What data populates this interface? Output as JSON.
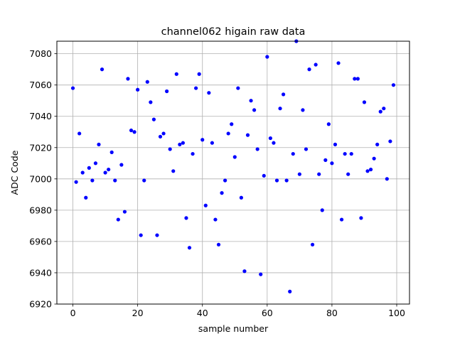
{
  "chart_data": {
    "type": "scatter",
    "title": "channel062 higain raw data",
    "xlabel": "sample number",
    "ylabel": "ADC Code",
    "xlim": [
      -4.95,
      103.95
    ],
    "ylim": [
      6920,
      7088
    ],
    "xticks": [
      0,
      20,
      40,
      60,
      80,
      100
    ],
    "yticks": [
      6920,
      6940,
      6960,
      6980,
      7000,
      7020,
      7040,
      7060,
      7080
    ],
    "grid": true,
    "marker_color": "#0000ff",
    "x": [
      0,
      1,
      2,
      3,
      4,
      5,
      6,
      7,
      8,
      9,
      10,
      11,
      12,
      13,
      14,
      15,
      16,
      17,
      18,
      19,
      20,
      21,
      22,
      23,
      24,
      25,
      26,
      27,
      28,
      29,
      30,
      31,
      32,
      33,
      34,
      35,
      36,
      37,
      38,
      39,
      40,
      41,
      42,
      43,
      44,
      45,
      46,
      47,
      48,
      49,
      50,
      51,
      52,
      53,
      54,
      55,
      56,
      57,
      58,
      59,
      60,
      61,
      62,
      63,
      64,
      65,
      66,
      67,
      68,
      69,
      70,
      71,
      72,
      73,
      74,
      75,
      76,
      77,
      78,
      79,
      80,
      81,
      82,
      83,
      84,
      85,
      86,
      87,
      88,
      89,
      90,
      91,
      92,
      93,
      94,
      95,
      96,
      97,
      98,
      99
    ],
    "y": [
      7058,
      6998,
      7029,
      7004,
      6988,
      7007,
      6999,
      7010,
      7022,
      7070,
      7004,
      7006,
      7017,
      6999,
      6974,
      7009,
      6979,
      7064,
      7031,
      7030,
      7057,
      6964,
      6999,
      7062,
      7049,
      7038,
      6964,
      7027,
      7029,
      7056,
      7019,
      7005,
      7067,
      7022,
      7023,
      6975,
      6956,
      7016,
      7058,
      7067,
      7025,
      6983,
      7055,
      7023,
      6974,
      6958,
      6991,
      6999,
      7029,
      7035,
      7014,
      7058,
      6988,
      6941,
      7028,
      7050,
      7044,
      7019,
      6939,
      7002,
      7078,
      7026,
      7023,
      6999,
      7045,
      7054,
      6999,
      6928,
      7016,
      7088,
      7003,
      7044,
      7019,
      7070,
      6958,
      7073,
      7003,
      6980,
      7012,
      7035,
      7010,
      7022,
      7074,
      6974,
      7016,
      7003,
      7016,
      7064,
      7064,
      6975,
      7049,
      7005,
      7006,
      7013,
      7022,
      7043,
      7045,
      7000,
      7024,
      7060
    ]
  }
}
